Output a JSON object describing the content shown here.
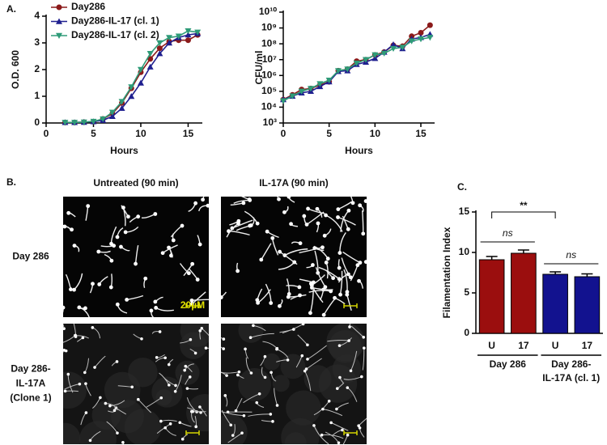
{
  "chart_data": [
    {
      "type": "line",
      "panel_label": "A.",
      "xlabel": "Hours",
      "ylabel": "O.D. 600",
      "xlim": [
        0,
        16.5
      ],
      "xticks": [
        0,
        5,
        10,
        15
      ],
      "ylim": [
        0,
        4
      ],
      "yticks": [
        0,
        1,
        2,
        3,
        4
      ],
      "legend": "upper left",
      "x": [
        2,
        3,
        4,
        5,
        6,
        7,
        8,
        9,
        10,
        11,
        12,
        13,
        14,
        15,
        16
      ],
      "series": [
        {
          "name": "Day286",
          "color": "#8b1a1a",
          "marker": "circle",
          "values": [
            0.02,
            0.02,
            0.03,
            0.05,
            0.15,
            0.35,
            0.75,
            1.3,
            1.9,
            2.4,
            2.8,
            3.05,
            3.1,
            3.1,
            3.3
          ]
        },
        {
          "name": "Day286-IL-17 (cl. 1)",
          "color": "#1f1f8f",
          "marker": "triangle-up",
          "values": [
            0.02,
            0.02,
            0.03,
            0.05,
            0.1,
            0.25,
            0.55,
            1.0,
            1.5,
            2.1,
            2.6,
            3.0,
            3.2,
            3.3,
            3.35
          ]
        },
        {
          "name": "Day286-IL-17 (cl. 2)",
          "color": "#2e9b78",
          "marker": "triangle-down",
          "values": [
            0.02,
            0.02,
            0.03,
            0.06,
            0.15,
            0.4,
            0.8,
            1.35,
            2.0,
            2.6,
            3.0,
            3.2,
            3.25,
            3.45,
            3.4
          ]
        }
      ]
    },
    {
      "type": "line",
      "xlabel": "Hours",
      "ylabel": "CFU/ml",
      "log_y": true,
      "xlim": [
        0,
        16.5
      ],
      "xticks": [
        0,
        5,
        10,
        15
      ],
      "ylim": [
        1000,
        10000000000
      ],
      "yticks": [
        {
          "value": 1000,
          "label": "10³"
        },
        {
          "value": 10000,
          "label": "10⁴"
        },
        {
          "value": 100000,
          "label": "10⁵"
        },
        {
          "value": 1000000,
          "label": "10⁶"
        },
        {
          "value": 10000000,
          "label": "10⁷"
        },
        {
          "value": 100000000,
          "label": "10⁸"
        },
        {
          "value": 1000000000,
          "label": "10⁹"
        },
        {
          "value": 10000000000,
          "label": "10¹⁰"
        }
      ],
      "x": [
        0,
        1,
        2,
        3,
        4,
        5,
        6,
        7,
        8,
        9,
        10,
        11,
        12,
        13,
        14,
        15,
        16
      ],
      "series": [
        {
          "color": "#8b1a1a",
          "marker": "circle",
          "values": [
            30000,
            60000,
            130000,
            150000,
            250000,
            400000,
            2000000,
            2500000,
            8000000,
            10000000,
            20000000,
            30000000,
            80000000,
            70000000,
            300000000,
            500000000,
            1500000000
          ]
        },
        {
          "color": "#1f1f8f",
          "marker": "triangle-up",
          "values": [
            30000,
            50000,
            80000,
            100000,
            200000,
            400000,
            1800000,
            2000000,
            5000000,
            7000000,
            12000000,
            30000000,
            90000000,
            50000000,
            200000000,
            250000000,
            400000000
          ]
        },
        {
          "color": "#2e9b78",
          "marker": "triangle-down",
          "values": [
            25000,
            50000,
            100000,
            150000,
            300000,
            500000,
            2000000,
            2500000,
            6000000,
            10000000,
            20000000,
            25000000,
            50000000,
            60000000,
            150000000,
            200000000,
            250000000
          ]
        }
      ]
    },
    {
      "type": "bar",
      "panel_label": "C.",
      "ylabel": "Filamentation Index",
      "categories": [
        "U",
        "17",
        "U",
        "17"
      ],
      "values": [
        9.1,
        9.9,
        7.3,
        7.0
      ],
      "errors": [
        0.4,
        0.4,
        0.3,
        0.35
      ],
      "colors": [
        "#9b0e0e",
        "#9b0e0e",
        "#12128f",
        "#12128f"
      ],
      "group_labels": [
        [
          "Day 286"
        ],
        [
          "Day 286-",
          "IL-17A (cl. 1)"
        ]
      ],
      "annotations": [
        "ns",
        "ns",
        "**"
      ],
      "ylim": [
        0,
        15
      ],
      "yticks": [
        0,
        5,
        10,
        15
      ]
    }
  ],
  "panel_b": {
    "label": "B.",
    "columns": [
      "Untreated (90 min)",
      "IL-17A (90 min)"
    ],
    "rows": [
      [
        "Day 286"
      ],
      [
        "Day 286-",
        "IL-17A",
        "(Clone 1)"
      ]
    ],
    "scale_bar": "20µM"
  }
}
